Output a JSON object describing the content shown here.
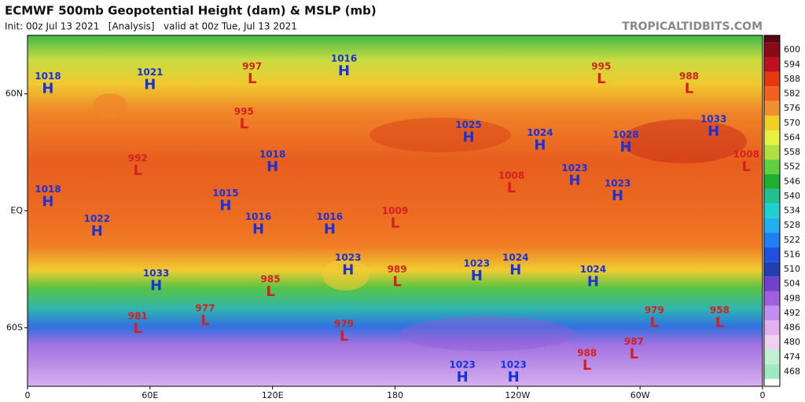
{
  "chart_data": {
    "type": "map",
    "title": "ECMWF 500mb Geopotential Height (dam) & MSLP (mb)",
    "subtitle": "Init: 00z Jul 13 2021   [Analysis]   valid at 00z Tue, Jul 13 2021",
    "watermark": "TROPICALTIDBITS.COM",
    "xlim": [
      0,
      360
    ],
    "ylim": [
      -90,
      90
    ],
    "xticks": [
      0,
      {
        "value": 60,
        "label": "60E"
      },
      {
        "value": 120,
        "label": "120E"
      },
      {
        "value": 180,
        "label": "180"
      },
      {
        "value": 240,
        "label": "120W"
      },
      {
        "value": 300,
        "label": "60W"
      },
      {
        "value": 360,
        "label": "0"
      }
    ],
    "yticks": [
      {
        "value": 60,
        "label": "60N"
      },
      {
        "value": 0,
        "label": "EQ"
      },
      {
        "value": -60,
        "label": "60S"
      }
    ],
    "high_color": "#1a32d8",
    "low_color": "#d42020",
    "colorbar": {
      "clim": [
        462,
        606
      ],
      "ticks": [
        600,
        594,
        588,
        582,
        576,
        570,
        564,
        558,
        552,
        546,
        540,
        534,
        528,
        522,
        516,
        510,
        504,
        498,
        492,
        486,
        480,
        474,
        468
      ],
      "colors": [
        "#8a0a1a",
        "#c01020",
        "#e83a10",
        "#f06020",
        "#f09030",
        "#f0d020",
        "#e8f040",
        "#b0e040",
        "#60d040",
        "#20b030",
        "#20c090",
        "#20d0d0",
        "#20b0f0",
        "#2080f0",
        "#2050e0",
        "#2040b0",
        "#7040d0",
        "#a060e0",
        "#c090f0",
        "#e0b0f0",
        "#f0d0f0",
        "#c0f0d0",
        "#a0e8c0"
      ]
    },
    "centers": [
      {
        "label": "H",
        "value": 1018,
        "lon": 10,
        "lat": 64
      },
      {
        "label": "H",
        "value": 1021,
        "lon": 60,
        "lat": 66
      },
      {
        "label": "L",
        "value": 997,
        "lon": 110,
        "lat": 69
      },
      {
        "label": "L",
        "value": 995,
        "lon": 106,
        "lat": 46
      },
      {
        "label": "H",
        "value": 1016,
        "lon": 155,
        "lat": 73
      },
      {
        "label": "L",
        "value": 992,
        "lon": 54,
        "lat": 22
      },
      {
        "label": "H",
        "value": 1018,
        "lon": 120,
        "lat": 24
      },
      {
        "label": "H",
        "value": 1015,
        "lon": 97,
        "lat": 4
      },
      {
        "label": "H",
        "value": 1016,
        "lon": 113,
        "lat": -8
      },
      {
        "label": "H",
        "value": 1016,
        "lon": 148,
        "lat": -8
      },
      {
        "label": "L",
        "value": 1009,
        "lon": 180,
        "lat": -5
      },
      {
        "label": "H",
        "value": 1025,
        "lon": 216,
        "lat": 39
      },
      {
        "label": "L",
        "value": 1008,
        "lon": 237,
        "lat": 13
      },
      {
        "label": "H",
        "value": 1024,
        "lon": 251,
        "lat": 35
      },
      {
        "label": "H",
        "value": 1023,
        "lon": 268,
        "lat": 17
      },
      {
        "label": "H",
        "value": 1023,
        "lon": 289,
        "lat": 9
      },
      {
        "label": "H",
        "value": 1028,
        "lon": 293,
        "lat": 34
      },
      {
        "label": "L",
        "value": 995,
        "lon": 281,
        "lat": 69
      },
      {
        "label": "L",
        "value": 988,
        "lon": 324,
        "lat": 64
      },
      {
        "label": "H",
        "value": 1033,
        "lon": 336,
        "lat": 42
      },
      {
        "label": "L",
        "value": 1008,
        "lon": 352,
        "lat": 24
      },
      {
        "label": "H",
        "value": 1018,
        "lon": 10,
        "lat": 6
      },
      {
        "label": "H",
        "value": 1022,
        "lon": 34,
        "lat": -9
      },
      {
        "label": "H",
        "value": 1033,
        "lon": 63,
        "lat": -37
      },
      {
        "label": "L",
        "value": 985,
        "lon": 119,
        "lat": -40
      },
      {
        "label": "H",
        "value": 1023,
        "lon": 157,
        "lat": -29
      },
      {
        "label": "L",
        "value": 989,
        "lon": 181,
        "lat": -35
      },
      {
        "label": "H",
        "value": 1023,
        "lon": 220,
        "lat": -32
      },
      {
        "label": "H",
        "value": 1024,
        "lon": 239,
        "lat": -29
      },
      {
        "label": "H",
        "value": 1024,
        "lon": 277,
        "lat": -35
      },
      {
        "label": "L",
        "value": 981,
        "lon": 54,
        "lat": -59
      },
      {
        "label": "L",
        "value": 977,
        "lon": 87,
        "lat": -55
      },
      {
        "label": "L",
        "value": 979,
        "lon": 155,
        "lat": -63
      },
      {
        "label": "L",
        "value": 979,
        "lon": 307,
        "lat": -56
      },
      {
        "label": "L",
        "value": 958,
        "lon": 339,
        "lat": -56
      },
      {
        "label": "L",
        "value": 988,
        "lon": 274,
        "lat": -78
      },
      {
        "label": "L",
        "value": 987,
        "lon": 297,
        "lat": -72
      },
      {
        "label": "H",
        "value": 1023,
        "lon": 213,
        "lat": -84
      },
      {
        "label": "H",
        "value": 1023,
        "lon": 238,
        "lat": -84
      }
    ]
  }
}
